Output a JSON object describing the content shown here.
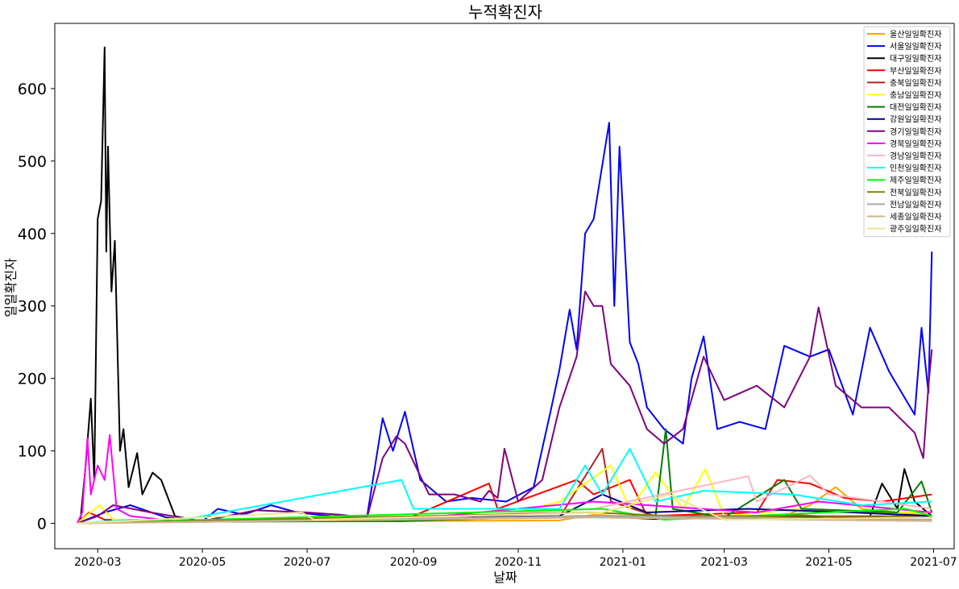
{
  "chart_data": {
    "type": "line",
    "title": "누적확진자",
    "xlabel": "날짜",
    "ylabel": "일일확진자",
    "x_ticks": [
      "2020-03",
      "2020-05",
      "2020-07",
      "2020-09",
      "2020-11",
      "2021-01",
      "2021-03",
      "2021-05",
      "2021-07"
    ],
    "y_ticks": [
      "0",
      "100",
      "200",
      "300",
      "400",
      "500",
      "600"
    ],
    "ylim": [
      -35,
      690
    ],
    "xlim": [
      "2020-02-05",
      "2021-07-13"
    ],
    "grid": false,
    "legend_position": "top-right",
    "series": [
      {
        "name": "울산일일확진자",
        "color": "#FFA500",
        "points": [
          [
            "2020-02-18",
            0
          ],
          [
            "2020-03-20",
            3
          ],
          [
            "2020-08-25",
            3
          ],
          [
            "2020-11-25",
            4
          ],
          [
            "2020-12-15",
            12
          ],
          [
            "2021-01-20",
            6
          ],
          [
            "2021-04-05",
            10
          ],
          [
            "2021-04-20",
            25
          ],
          [
            "2021-05-05",
            50
          ],
          [
            "2021-05-20",
            20
          ],
          [
            "2021-06-10",
            15
          ],
          [
            "2021-06-30",
            10
          ]
        ]
      },
      {
        "name": "서울일일확진자",
        "color": "#0000FF",
        "points": [
          [
            "2020-02-18",
            0
          ],
          [
            "2020-03-05",
            15
          ],
          [
            "2020-03-20",
            25
          ],
          [
            "2020-04-10",
            8
          ],
          [
            "2020-05-01",
            3
          ],
          [
            "2020-05-10",
            20
          ],
          [
            "2020-05-25",
            12
          ],
          [
            "2020-06-10",
            25
          ],
          [
            "2020-06-25",
            15
          ],
          [
            "2020-07-15",
            10
          ],
          [
            "2020-08-05",
            10
          ],
          [
            "2020-08-14",
            145
          ],
          [
            "2020-08-20",
            100
          ],
          [
            "2020-08-27",
            154
          ],
          [
            "2020-09-05",
            60
          ],
          [
            "2020-09-20",
            30
          ],
          [
            "2020-10-05",
            35
          ],
          [
            "2020-10-25",
            30
          ],
          [
            "2020-11-10",
            50
          ],
          [
            "2020-11-20",
            156
          ],
          [
            "2020-11-25",
            212
          ],
          [
            "2020-12-01",
            295
          ],
          [
            "2020-12-05",
            240
          ],
          [
            "2020-12-10",
            400
          ],
          [
            "2020-12-15",
            420
          ],
          [
            "2020-12-19",
            480
          ],
          [
            "2020-12-24",
            553
          ],
          [
            "2020-12-27",
            300
          ],
          [
            "2020-12-30",
            520
          ],
          [
            "2021-01-05",
            250
          ],
          [
            "2021-01-10",
            220
          ],
          [
            "2021-01-15",
            160
          ],
          [
            "2021-01-25",
            130
          ],
          [
            "2021-02-05",
            110
          ],
          [
            "2021-02-10",
            200
          ],
          [
            "2021-02-17",
            258
          ],
          [
            "2021-02-25",
            130
          ],
          [
            "2021-03-10",
            140
          ],
          [
            "2021-03-25",
            130
          ],
          [
            "2021-04-05",
            245
          ],
          [
            "2021-04-20",
            230
          ],
          [
            "2021-05-01",
            240
          ],
          [
            "2021-05-15",
            150
          ],
          [
            "2021-05-25",
            270
          ],
          [
            "2021-06-05",
            210
          ],
          [
            "2021-06-20",
            150
          ],
          [
            "2021-06-24",
            270
          ],
          [
            "2021-06-28",
            180
          ],
          [
            "2021-06-30",
            375
          ]
        ]
      },
      {
        "name": "대구일일확진자",
        "color": "#000000",
        "points": [
          [
            "2020-02-18",
            0
          ],
          [
            "2020-02-20",
            5
          ],
          [
            "2020-02-23",
            80
          ],
          [
            "2020-02-26",
            172
          ],
          [
            "2020-02-28",
            60
          ],
          [
            "2020-03-01",
            420
          ],
          [
            "2020-03-03",
            445
          ],
          [
            "2020-03-05",
            657
          ],
          [
            "2020-03-06",
            375
          ],
          [
            "2020-03-07",
            520
          ],
          [
            "2020-03-09",
            320
          ],
          [
            "2020-03-11",
            390
          ],
          [
            "2020-03-14",
            100
          ],
          [
            "2020-03-16",
            130
          ],
          [
            "2020-03-19",
            50
          ],
          [
            "2020-03-24",
            97
          ],
          [
            "2020-03-27",
            40
          ],
          [
            "2020-04-02",
            70
          ],
          [
            "2020-04-07",
            60
          ],
          [
            "2020-04-15",
            10
          ],
          [
            "2020-05-01",
            2
          ],
          [
            "2020-08-25",
            5
          ],
          [
            "2020-12-15",
            10
          ],
          [
            "2021-01-20",
            6
          ],
          [
            "2021-05-25",
            10
          ],
          [
            "2021-06-01",
            55
          ],
          [
            "2021-06-10",
            20
          ],
          [
            "2021-06-14",
            75
          ],
          [
            "2021-06-20",
            30
          ],
          [
            "2021-06-30",
            10
          ]
        ]
      },
      {
        "name": "부산일일확진자",
        "color": "#FF0000",
        "points": [
          [
            "2020-02-18",
            0
          ],
          [
            "2020-02-25",
            15
          ],
          [
            "2020-03-05",
            5
          ],
          [
            "2020-08-25",
            3
          ],
          [
            "2020-10-15",
            55
          ],
          [
            "2020-10-20",
            20
          ],
          [
            "2020-12-05",
            60
          ],
          [
            "2020-12-15",
            40
          ],
          [
            "2021-01-05",
            60
          ],
          [
            "2021-01-15",
            10
          ],
          [
            "2021-03-20",
            15
          ],
          [
            "2021-04-01",
            60
          ],
          [
            "2021-04-20",
            55
          ],
          [
            "2021-05-10",
            35
          ],
          [
            "2021-06-01",
            30
          ],
          [
            "2021-06-30",
            40
          ]
        ]
      },
      {
        "name": "충북일일확진자",
        "color": "#B22222",
        "points": [
          [
            "2020-02-18",
            0
          ],
          [
            "2020-03-20",
            2
          ],
          [
            "2020-11-25",
            8
          ],
          [
            "2020-12-20",
            103
          ],
          [
            "2020-12-25",
            30
          ],
          [
            "2021-01-20",
            10
          ],
          [
            "2021-03-10",
            8
          ],
          [
            "2021-04-10",
            12
          ],
          [
            "2021-05-10",
            8
          ],
          [
            "2021-06-10",
            10
          ],
          [
            "2021-06-30",
            8
          ]
        ]
      },
      {
        "name": "충남일일확진자",
        "color": "#FFFF00",
        "points": [
          [
            "2020-02-18",
            0
          ],
          [
            "2020-03-02",
            25
          ],
          [
            "2020-03-10",
            5
          ],
          [
            "2020-08-25",
            5
          ],
          [
            "2020-10-25",
            10
          ],
          [
            "2020-11-25",
            30
          ],
          [
            "2020-12-25",
            80
          ],
          [
            "2021-01-05",
            20
          ],
          [
            "2021-01-20",
            70
          ],
          [
            "2021-02-05",
            20
          ],
          [
            "2021-02-18",
            75
          ],
          [
            "2021-03-01",
            10
          ],
          [
            "2021-04-15",
            20
          ],
          [
            "2021-05-15",
            15
          ],
          [
            "2021-06-30",
            15
          ]
        ]
      },
      {
        "name": "대전일일확진자",
        "color": "#008000",
        "points": [
          [
            "2020-02-18",
            0
          ],
          [
            "2020-03-20",
            2
          ],
          [
            "2020-08-25",
            3
          ],
          [
            "2020-12-05",
            10
          ],
          [
            "2021-01-20",
            10
          ],
          [
            "2021-01-26",
            130
          ],
          [
            "2021-01-30",
            20
          ],
          [
            "2021-03-01",
            8
          ],
          [
            "2021-04-05",
            60
          ],
          [
            "2021-04-15",
            20
          ],
          [
            "2021-06-10",
            15
          ],
          [
            "2021-06-24",
            58
          ],
          [
            "2021-06-30",
            15
          ]
        ]
      },
      {
        "name": "강원일일확진자",
        "color": "#00008B",
        "points": [
          [
            "2020-02-18",
            0
          ],
          [
            "2020-03-20",
            2
          ],
          [
            "2020-11-25",
            10
          ],
          [
            "2020-12-20",
            40
          ],
          [
            "2021-01-15",
            15
          ],
          [
            "2021-03-15",
            20
          ],
          [
            "2021-05-15",
            15
          ],
          [
            "2021-06-30",
            10
          ]
        ]
      },
      {
        "name": "경기일일확진자",
        "color": "#800080",
        "points": [
          [
            "2020-02-18",
            0
          ],
          [
            "2020-03-01",
            10
          ],
          [
            "2020-03-10",
            25
          ],
          [
            "2020-04-01",
            15
          ],
          [
            "2020-05-01",
            3
          ],
          [
            "2020-06-01",
            18
          ],
          [
            "2020-07-01",
            15
          ],
          [
            "2020-07-20",
            12
          ],
          [
            "2020-08-05",
            8
          ],
          [
            "2020-08-14",
            90
          ],
          [
            "2020-08-22",
            120
          ],
          [
            "2020-08-27",
            110
          ],
          [
            "2020-09-10",
            40
          ],
          [
            "2020-09-25",
            40
          ],
          [
            "2020-10-10",
            30
          ],
          [
            "2020-10-15",
            45
          ],
          [
            "2020-10-20",
            35
          ],
          [
            "2020-10-24",
            103
          ],
          [
            "2020-11-01",
            30
          ],
          [
            "2020-11-15",
            60
          ],
          [
            "2020-11-25",
            160
          ],
          [
            "2020-12-05",
            230
          ],
          [
            "2020-12-10",
            320
          ],
          [
            "2020-12-15",
            300
          ],
          [
            "2020-12-20",
            300
          ],
          [
            "2020-12-25",
            220
          ],
          [
            "2021-01-05",
            190
          ],
          [
            "2021-01-15",
            130
          ],
          [
            "2021-01-25",
            110
          ],
          [
            "2021-02-05",
            130
          ],
          [
            "2021-02-17",
            230
          ],
          [
            "2021-03-01",
            170
          ],
          [
            "2021-03-20",
            190
          ],
          [
            "2021-04-05",
            160
          ],
          [
            "2021-04-20",
            230
          ],
          [
            "2021-04-25",
            298
          ],
          [
            "2021-05-05",
            190
          ],
          [
            "2021-05-20",
            160
          ],
          [
            "2021-06-05",
            160
          ],
          [
            "2021-06-20",
            125
          ],
          [
            "2021-06-25",
            90
          ],
          [
            "2021-06-28",
            190
          ],
          [
            "2021-06-30",
            240
          ]
        ]
      },
      {
        "name": "경북일일확진자",
        "color": "#FF00FF",
        "points": [
          [
            "2020-02-18",
            0
          ],
          [
            "2020-02-21",
            15
          ],
          [
            "2020-02-24",
            118
          ],
          [
            "2020-02-26",
            40
          ],
          [
            "2020-03-01",
            80
          ],
          [
            "2020-03-05",
            60
          ],
          [
            "2020-03-08",
            122
          ],
          [
            "2020-03-12",
            20
          ],
          [
            "2020-03-20",
            10
          ],
          [
            "2020-04-15",
            3
          ],
          [
            "2020-08-25",
            5
          ],
          [
            "2020-12-15",
            30
          ],
          [
            "2021-03-20",
            15
          ],
          [
            "2021-04-25",
            30
          ],
          [
            "2021-06-30",
            15
          ]
        ]
      },
      {
        "name": "경남일일확진자",
        "color": "#FFB6C1",
        "points": [
          [
            "2020-02-18",
            0
          ],
          [
            "2020-03-20",
            3
          ],
          [
            "2020-08-25",
            5
          ],
          [
            "2020-12-15",
            20
          ],
          [
            "2021-03-15",
            65
          ],
          [
            "2021-03-20",
            30
          ],
          [
            "2021-04-20",
            66
          ],
          [
            "2021-05-01",
            40
          ],
          [
            "2021-06-01",
            30
          ],
          [
            "2021-06-30",
            20
          ]
        ]
      },
      {
        "name": "인천일일확진자",
        "color": "#00FFFF",
        "points": [
          [
            "2020-02-18",
            0
          ],
          [
            "2020-03-20",
            5
          ],
          [
            "2020-04-15",
            3
          ],
          [
            "2020-08-25",
            60
          ],
          [
            "2020-09-01",
            20
          ],
          [
            "2020-11-25",
            20
          ],
          [
            "2020-12-10",
            80
          ],
          [
            "2020-12-20",
            40
          ],
          [
            "2021-01-05",
            103
          ],
          [
            "2021-01-20",
            30
          ],
          [
            "2021-02-17",
            45
          ],
          [
            "2021-04-10",
            40
          ],
          [
            "2021-05-20",
            25
          ],
          [
            "2021-06-30",
            30
          ]
        ]
      },
      {
        "name": "제주일일확진자",
        "color": "#00FF00",
        "points": [
          [
            "2020-02-18",
            0
          ],
          [
            "2020-12-20",
            20
          ],
          [
            "2021-01-25",
            5
          ],
          [
            "2021-06-15",
            20
          ],
          [
            "2021-06-30",
            10
          ]
        ]
      },
      {
        "name": "전북일일확진자",
        "color": "#808000",
        "points": [
          [
            "2020-02-18",
            0
          ],
          [
            "2020-12-15",
            15
          ],
          [
            "2021-01-30",
            10
          ],
          [
            "2021-06-01",
            10
          ],
          [
            "2021-06-30",
            8
          ]
        ]
      },
      {
        "name": "전남일일확진자",
        "color": "#A9A9A9",
        "points": [
          [
            "2020-02-18",
            0
          ],
          [
            "2020-12-15",
            10
          ],
          [
            "2021-03-15",
            8
          ],
          [
            "2021-06-30",
            5
          ]
        ]
      },
      {
        "name": "세종일일확진자",
        "color": "#D2B48C",
        "points": [
          [
            "2020-02-18",
            0
          ],
          [
            "2020-12-15",
            8
          ],
          [
            "2021-04-15",
            5
          ],
          [
            "2021-06-30",
            3
          ]
        ]
      },
      {
        "name": "광주일일확진자",
        "color": "#F0E68C",
        "points": [
          [
            "2020-02-18",
            0
          ],
          [
            "2020-06-28",
            15
          ],
          [
            "2020-07-05",
            5
          ],
          [
            "2020-12-20",
            15
          ],
          [
            "2021-01-28",
            40
          ],
          [
            "2021-03-01",
            5
          ],
          [
            "2021-06-30",
            8
          ]
        ]
      }
    ]
  }
}
